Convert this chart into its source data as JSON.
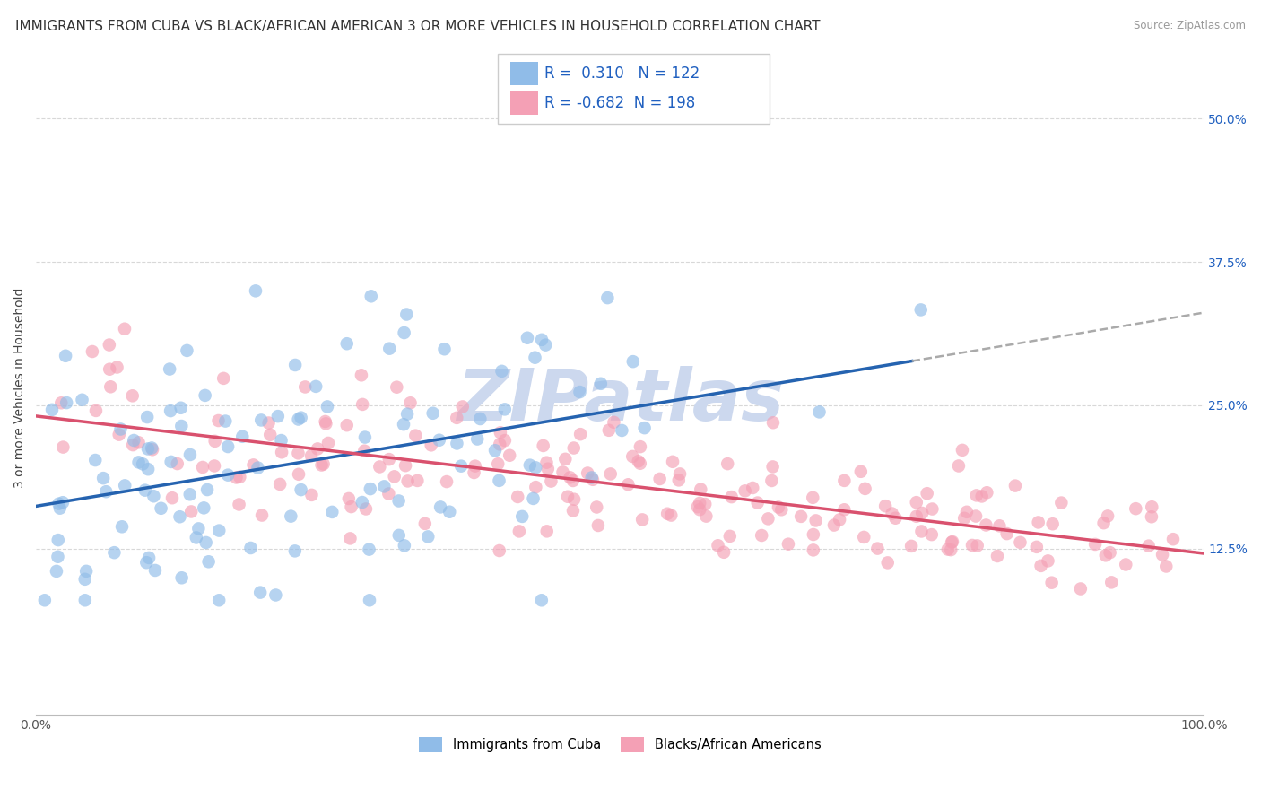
{
  "title": "IMMIGRANTS FROM CUBA VS BLACK/AFRICAN AMERICAN 3 OR MORE VEHICLES IN HOUSEHOLD CORRELATION CHART",
  "source": "Source: ZipAtlas.com",
  "ylabel": "3 or more Vehicles in Household",
  "xlim": [
    0,
    100
  ],
  "ylim": [
    -2,
    55
  ],
  "yticks": [
    12.5,
    25.0,
    37.5,
    50.0
  ],
  "ytick_labels": [
    "12.5%",
    "25.0%",
    "37.5%",
    "50.0%"
  ],
  "xticks": [
    0,
    100
  ],
  "xtick_labels": [
    "0.0%",
    "100.0%"
  ],
  "legend_r1": "R =  0.310",
  "legend_n1": "N = 122",
  "legend_r2": "R = -0.682",
  "legend_n2": "N = 198",
  "color_blue": "#90bce8",
  "color_pink": "#f4a0b5",
  "color_blue_line": "#2563b0",
  "color_pink_line": "#d9516e",
  "color_blue_dark": "#2060c0",
  "watermark": "ZIPatlas",
  "watermark_color": "#ccd8ee",
  "background_color": "#ffffff",
  "grid_color": "#d8d8d8",
  "R1": 0.31,
  "N1": 122,
  "R2": -0.682,
  "N2": 198,
  "seed": 7,
  "title_fontsize": 11,
  "axis_label_fontsize": 10,
  "tick_fontsize": 10,
  "legend_fontsize": 12,
  "blue_line_start_x": 0,
  "blue_line_start_y": 20.0,
  "blue_line_end_x": 100,
  "blue_line_end_y": 29.5,
  "blue_solid_end_x": 75,
  "pink_line_start_x": 0,
  "pink_line_start_y": 22.5,
  "pink_line_end_x": 100,
  "pink_line_end_y": 12.5
}
